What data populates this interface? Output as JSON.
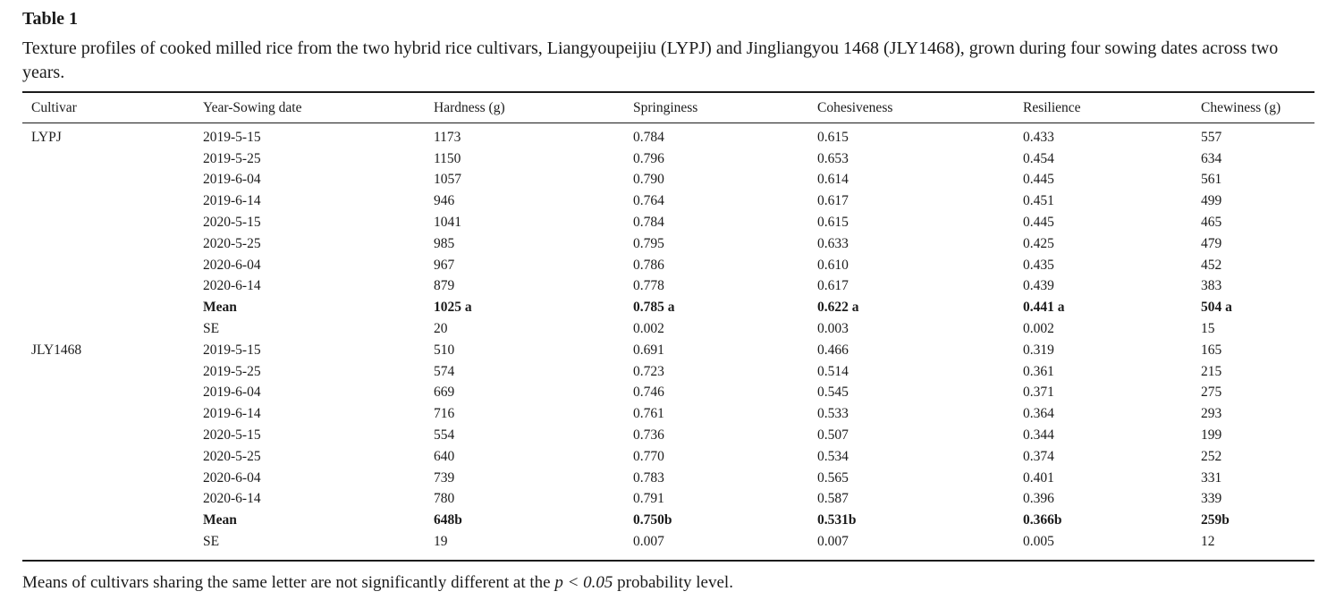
{
  "page": {
    "title": "Table 1",
    "caption": "Texture profiles of cooked milled rice from the two hybrid rice cultivars, Liangyoupeijiu (LYPJ) and Jingliangyou 1468 (JLY1468), grown during four sowing dates across two years.",
    "footnote": {
      "prefix": "Means of cultivars sharing the same letter are not significantly different at the ",
      "italic": "p < 0.05",
      "suffix": " probability level."
    }
  },
  "table": {
    "columns": [
      "Cultivar",
      "Year-Sowing date",
      "Hardness (g)",
      "Springiness",
      "Cohesiveness",
      "Resilience",
      "Chewiness (g)"
    ],
    "rows": [
      {
        "cells": [
          "LYPJ",
          "2019-5-15",
          "1173",
          "0.784",
          "0.615",
          "0.433",
          "557"
        ],
        "bold": false
      },
      {
        "cells": [
          "",
          "2019-5-25",
          "1150",
          "0.796",
          "0.653",
          "0.454",
          "634"
        ],
        "bold": false
      },
      {
        "cells": [
          "",
          "2019-6-04",
          "1057",
          "0.790",
          "0.614",
          "0.445",
          "561"
        ],
        "bold": false
      },
      {
        "cells": [
          "",
          "2019-6-14",
          "946",
          "0.764",
          "0.617",
          "0.451",
          "499"
        ],
        "bold": false
      },
      {
        "cells": [
          "",
          "2020-5-15",
          "1041",
          "0.784",
          "0.615",
          "0.445",
          "465"
        ],
        "bold": false
      },
      {
        "cells": [
          "",
          "2020-5-25",
          "985",
          "0.795",
          "0.633",
          "0.425",
          "479"
        ],
        "bold": false
      },
      {
        "cells": [
          "",
          "2020-6-04",
          "967",
          "0.786",
          "0.610",
          "0.435",
          "452"
        ],
        "bold": false
      },
      {
        "cells": [
          "",
          "2020-6-14",
          "879",
          "0.778",
          "0.617",
          "0.439",
          "383"
        ],
        "bold": false
      },
      {
        "cells": [
          "",
          "Mean",
          "1025 a",
          "0.785 a",
          "0.622 a",
          "0.441 a",
          "504 a"
        ],
        "bold": true
      },
      {
        "cells": [
          "",
          "SE",
          "20",
          "0.002",
          "0.003",
          "0.002",
          "15"
        ],
        "bold": false
      },
      {
        "cells": [
          "JLY1468",
          "2019-5-15",
          "510",
          "0.691",
          "0.466",
          "0.319",
          "165"
        ],
        "bold": false
      },
      {
        "cells": [
          "",
          "2019-5-25",
          "574",
          "0.723",
          "0.514",
          "0.361",
          "215"
        ],
        "bold": false
      },
      {
        "cells": [
          "",
          "2019-6-04",
          "669",
          "0.746",
          "0.545",
          "0.371",
          "275"
        ],
        "bold": false
      },
      {
        "cells": [
          "",
          "2019-6-14",
          "716",
          "0.761",
          "0.533",
          "0.364",
          "293"
        ],
        "bold": false
      },
      {
        "cells": [
          "",
          "2020-5-15",
          "554",
          "0.736",
          "0.507",
          "0.344",
          "199"
        ],
        "bold": false
      },
      {
        "cells": [
          "",
          "2020-5-25",
          "640",
          "0.770",
          "0.534",
          "0.374",
          "252"
        ],
        "bold": false
      },
      {
        "cells": [
          "",
          "2020-6-04",
          "739",
          "0.783",
          "0.565",
          "0.401",
          "331"
        ],
        "bold": false
      },
      {
        "cells": [
          "",
          "2020-6-14",
          "780",
          "0.791",
          "0.587",
          "0.396",
          "339"
        ],
        "bold": false
      },
      {
        "cells": [
          "",
          "Mean",
          "648b",
          "0.750b",
          "0.531b",
          "0.366b",
          "259b"
        ],
        "bold": true
      },
      {
        "cells": [
          "",
          "SE",
          "19",
          "0.007",
          "0.007",
          "0.005",
          "12"
        ],
        "bold": false
      }
    ]
  },
  "colors": {
    "text": "#1b1b1b",
    "rule": "#1b1b1b",
    "background": "#ffffff"
  }
}
